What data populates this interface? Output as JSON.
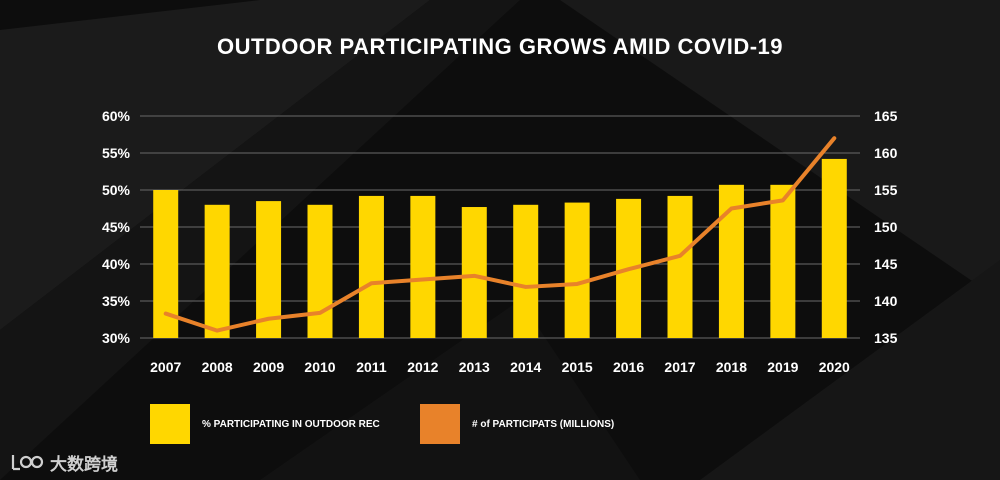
{
  "chart_data": {
    "type": "bar+line",
    "title": "OUTDOOR PARTICIPATING GROWS AMID COVID-19",
    "categories": [
      "2007",
      "2008",
      "2009",
      "2010",
      "2011",
      "2012",
      "2013",
      "2014",
      "2015",
      "2016",
      "2017",
      "2018",
      "2019",
      "2020"
    ],
    "series": [
      {
        "name": "% PARTICIPATING IN OUTDOOR REC",
        "type": "bar",
        "axis": "left",
        "color": "#FFD700",
        "values": [
          50.0,
          48.0,
          48.5,
          48.0,
          49.2,
          49.2,
          47.7,
          48.0,
          48.3,
          48.8,
          49.2,
          50.7,
          50.7,
          54.2
        ]
      },
      {
        "name": "# of PARTICIPATS (MILLIONS)",
        "type": "line",
        "axis": "right",
        "color": "#E8822A",
        "values": [
          138.3,
          136.0,
          137.6,
          138.4,
          142.4,
          142.9,
          143.4,
          141.9,
          142.3,
          144.3,
          146.1,
          152.5,
          153.6,
          162.0
        ]
      }
    ],
    "y_left": {
      "ylim": [
        30,
        60
      ],
      "ticks": [
        "30%",
        "35%",
        "40%",
        "45%",
        "50%",
        "55%",
        "60%"
      ]
    },
    "y_right": {
      "ylim": [
        135,
        165
      ],
      "ticks": [
        "135",
        "140",
        "145",
        "150",
        "155",
        "160",
        "165"
      ]
    },
    "grid": true,
    "legend_position": "bottom-left"
  },
  "legend": {
    "bar_label": "% PARTICIPATING IN OUTDOOR REC",
    "line_label": "# of PARTICIPATS (MILLIONS)"
  },
  "watermark": {
    "text": "大数跨境",
    "icon": "logo-icon"
  }
}
